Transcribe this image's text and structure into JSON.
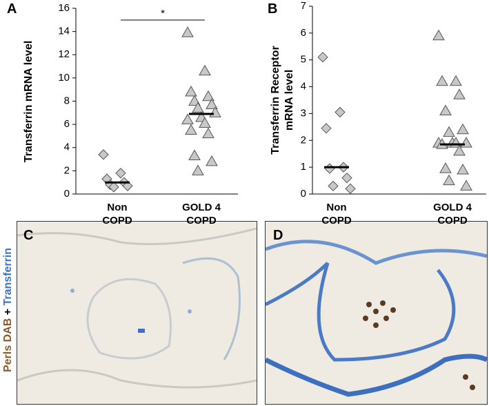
{
  "chart_data": [
    {
      "type": "strip",
      "panel": "A",
      "ylabel": "Transferrin mRNA level",
      "categories": [
        "Non COPD",
        "GOLD 4 COPD"
      ],
      "series": [
        {
          "marker": "diamond",
          "color": "#c8c8c8",
          "values": [
            3.4,
            1.8,
            1.3,
            1.0,
            0.8,
            0.7,
            0.6
          ],
          "median": 1.0
        },
        {
          "marker": "triangle",
          "color": "#c8c8c8",
          "values": [
            13.9,
            10.6,
            8.8,
            8.4,
            8.0,
            7.7,
            7.4,
            7.0,
            6.6,
            6.4,
            6.1,
            5.5,
            5.2,
            3.3,
            2.8,
            2.0
          ],
          "median": 6.9
        }
      ],
      "ylim": [
        0,
        16
      ],
      "yticks": [
        0,
        2,
        4,
        6,
        8,
        10,
        12,
        14,
        16
      ],
      "annotation": "*"
    },
    {
      "type": "strip",
      "panel": "B",
      "ylabel": "Transferrin Receptor mRNA level",
      "categories": [
        "Non COPD",
        "GOLD 4 COPD"
      ],
      "series": [
        {
          "marker": "diamond",
          "color": "#c8c8c8",
          "values": [
            5.1,
            3.05,
            2.45,
            1.0,
            0.95,
            0.6,
            0.3,
            0.2
          ],
          "median": 1.0
        },
        {
          "marker": "triangle",
          "color": "#c8c8c8",
          "values": [
            5.9,
            4.2,
            4.2,
            3.7,
            3.1,
            2.4,
            2.3,
            1.9,
            1.9,
            1.9,
            1.9,
            1.85,
            1.6,
            0.95,
            0.9,
            0.5,
            0.3
          ],
          "median": 1.85
        }
      ],
      "ylim": [
        0,
        7
      ],
      "yticks": [
        0,
        1,
        2,
        3,
        4,
        5,
        6,
        7
      ]
    }
  ],
  "images": {
    "panel_c": "C",
    "panel_d": "D",
    "stain_label": {
      "part1": "Perls DAB",
      "part2": "+",
      "part3": "Transferrin"
    }
  }
}
